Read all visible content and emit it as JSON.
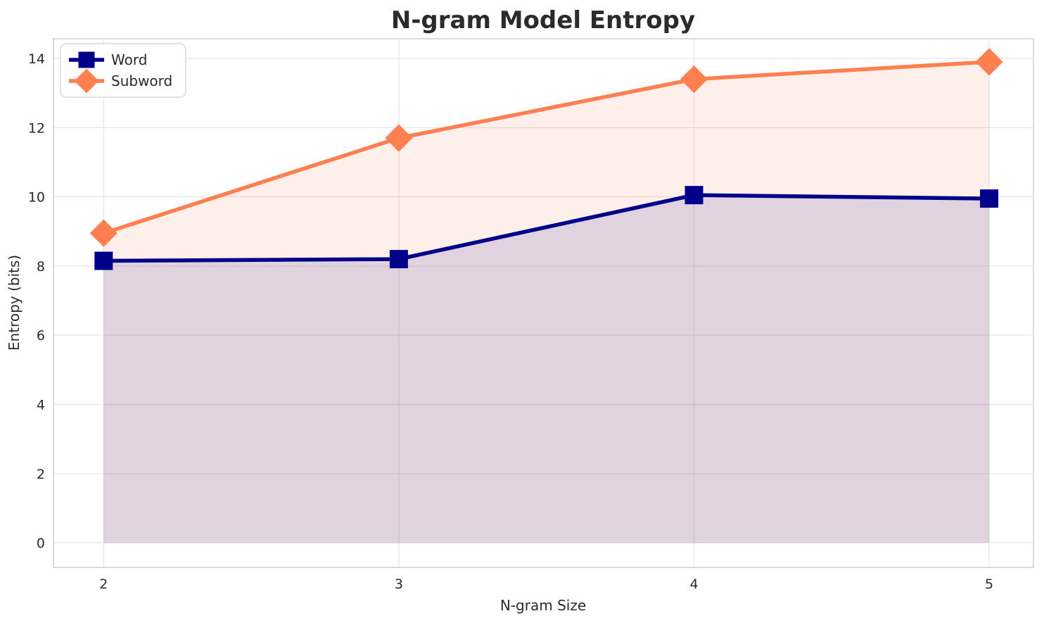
{
  "chart_data": {
    "type": "line",
    "title": "N-gram Model Entropy",
    "xlabel": "N-gram Size",
    "ylabel": "Entropy (bits)",
    "x": [
      2,
      3,
      4,
      5
    ],
    "series": [
      {
        "name": "Word",
        "values": [
          8.15,
          8.2,
          10.05,
          9.95
        ],
        "color": "#00008B",
        "marker": "square",
        "fill_alpha": 0.12
      },
      {
        "name": "Subword",
        "values": [
          8.95,
          11.7,
          13.4,
          13.9
        ],
        "color": "#FF7F50",
        "marker": "diamond",
        "fill_alpha": 0.12
      }
    ],
    "xtick_labels": [
      "2",
      "3",
      "4",
      "5"
    ],
    "xtick_values": [
      2,
      3,
      4,
      5
    ],
    "ytick_labels": [
      "0",
      "2",
      "4",
      "6",
      "8",
      "10",
      "12",
      "14"
    ],
    "ytick_values": [
      0,
      2,
      4,
      6,
      8,
      10,
      12,
      14
    ],
    "xlim": [
      1.83,
      5.15
    ],
    "ylim": [
      -0.71,
      14.57
    ],
    "area_baseline": 0,
    "grid": true,
    "legend_position": "upper left",
    "line_width": 5.5,
    "colors": {
      "grid": "#e8e8e8",
      "spine": "#d2d2d2",
      "text": "#2b2b2b",
      "legend_border": "#d9d9d9",
      "legend_background": "#ffffff"
    }
  }
}
